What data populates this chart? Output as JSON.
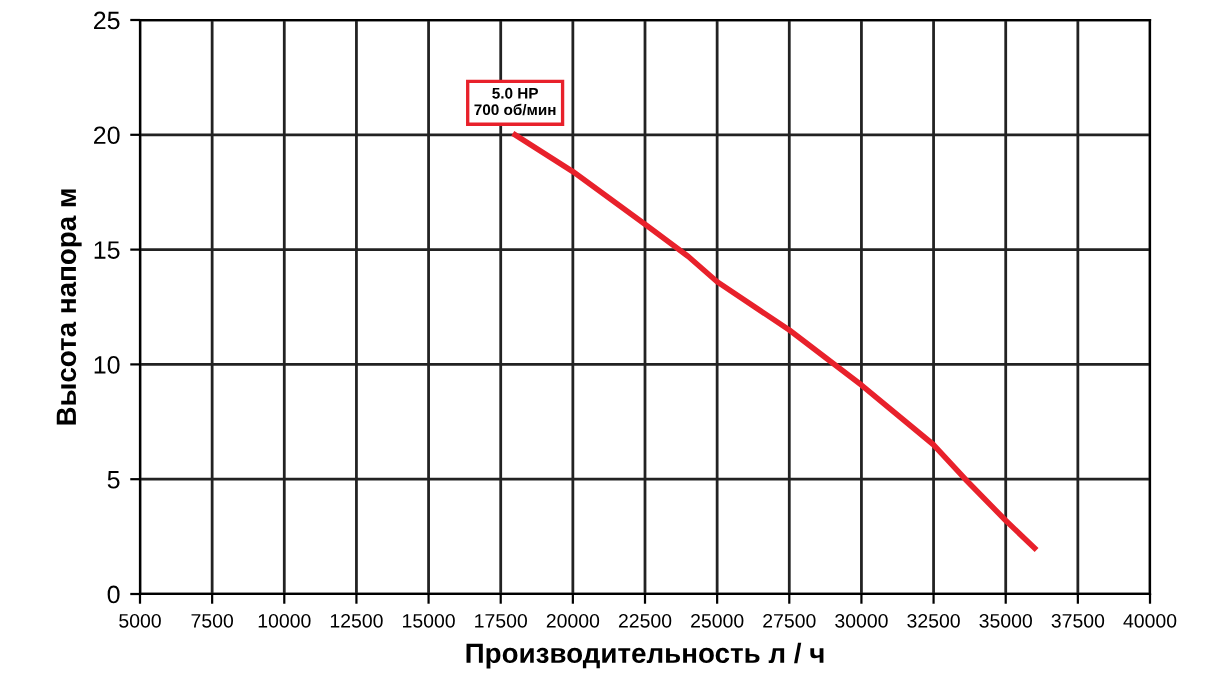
{
  "chart_data": {
    "type": "line",
    "xlabel": "Производительность л / ч",
    "ylabel": "Высота напора м",
    "x": [
      18000,
      20000,
      22500,
      24000,
      25000,
      27500,
      30000,
      32500,
      33600,
      35000,
      36000
    ],
    "series": [
      {
        "color": "#e8212b",
        "values": [
          20,
          18.4,
          16.1,
          14.7,
          13.6,
          11.5,
          9.1,
          6.5,
          5,
          3.2,
          2
        ]
      }
    ],
    "annotations": [
      {
        "text": "5.0 HP\n700 об/мин",
        "x": 18000,
        "y": 20
      }
    ],
    "xlim": [
      5000,
      40000
    ],
    "xticks": [
      5000,
      7500,
      10000,
      12500,
      15000,
      17500,
      20000,
      22500,
      25000,
      27500,
      30000,
      32500,
      35000,
      37500,
      40000
    ],
    "ylim": [
      0,
      25
    ],
    "yticks": [
      0,
      5,
      10,
      15,
      20,
      25
    ],
    "grid": true,
    "marker": "none",
    "line_style": "solid"
  }
}
